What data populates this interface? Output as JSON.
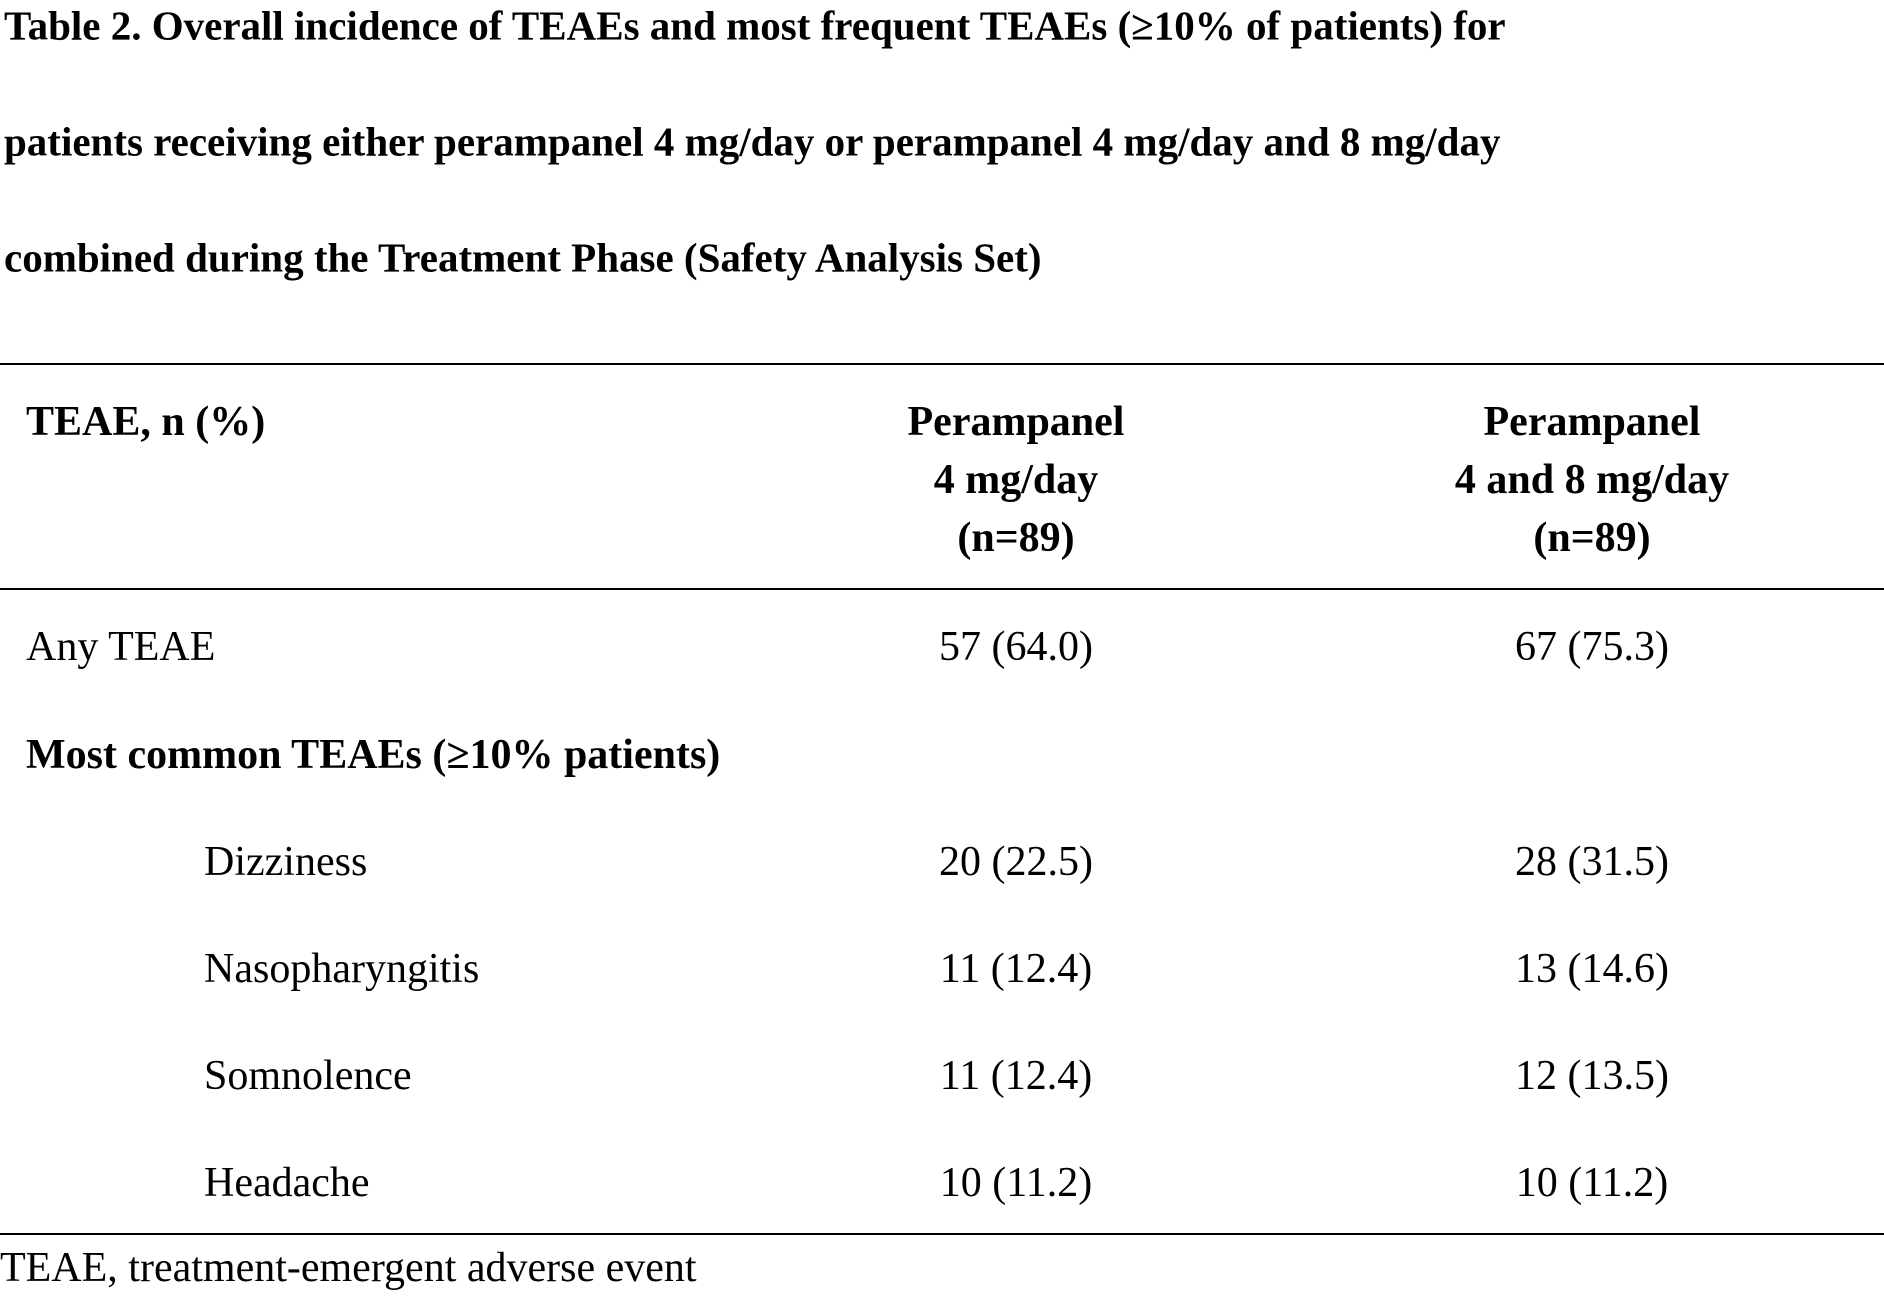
{
  "title_lines": [
    "Table 2. Overall incidence of TEAEs and most frequent TEAEs (≥10% of patients) for",
    "patients receiving either perampanel 4 mg/day or perampanel 4 mg/day and 8 mg/day",
    "combined during the Treatment Phase (Safety Analysis Set)"
  ],
  "table": {
    "header": [
      "TEAE, n (%)",
      [
        "Perampanel",
        "4 mg/day",
        "(n=89)"
      ],
      [
        "Perampanel",
        "4 and 8 mg/day",
        "(n=89)"
      ]
    ],
    "rows": [
      [
        "Any TEAE",
        "57 (64.0)",
        "67 (75.3)"
      ]
    ],
    "section": {
      "label": "Most common TEAEs (≥10% patients)",
      "rows": [
        [
          "Dizziness",
          "20 (22.5)",
          "28 (31.5)"
        ],
        [
          "Nasopharyngitis",
          "11 (12.4)",
          "13 (14.6)"
        ],
        [
          "Somnolence",
          "11 (12.4)",
          "12 (13.5)"
        ],
        [
          "Headache",
          "10 (11.2)",
          "10 (11.2)"
        ]
      ]
    }
  },
  "footnote": "TEAE, treatment-emergent adverse event"
}
